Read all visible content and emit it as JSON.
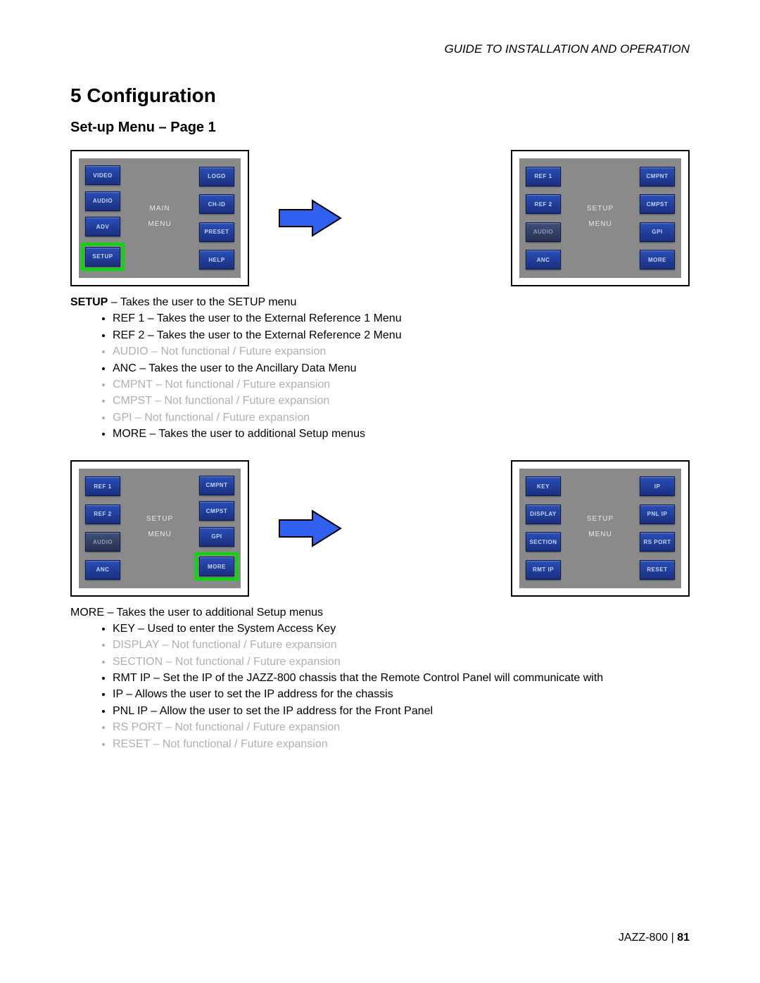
{
  "header": "GUIDE TO INSTALLATION AND OPERATION",
  "chapter": "5   Configuration",
  "section": "Set-up Menu – Page 1",
  "panel1": {
    "center1": "MAIN",
    "center2": "MENU",
    "left": [
      "VIDEO",
      "AUDIO",
      "ADV",
      "SETUP"
    ],
    "right": [
      "LOGO",
      "CH-ID",
      "PRESET",
      "HELP"
    ]
  },
  "panel2": {
    "center1": "SETUP",
    "center2": "MENU",
    "left": [
      "REF 1",
      "REF 2",
      "AUDIO",
      "ANC"
    ],
    "right": [
      "CMPNT",
      "CMPST",
      "GPI",
      "MORE"
    ]
  },
  "panel3": {
    "center1": "SETUP",
    "center2": "MENU",
    "left": [
      "REF 1",
      "REF 2",
      "AUDIO",
      "ANC"
    ],
    "right": [
      "CMPNT",
      "CMPST",
      "GPI",
      "MORE"
    ]
  },
  "panel4": {
    "center1": "SETUP",
    "center2": "MENU",
    "left": [
      "KEY",
      "DISPLAY",
      "SECTION",
      "RMT IP"
    ],
    "right": [
      "IP",
      "PNL IP",
      "RS PORT",
      "RESET"
    ]
  },
  "desc1": {
    "intro_bold": "SETUP",
    "intro_rest": " – Takes the user to the SETUP menu",
    "items": [
      {
        "t": "REF 1 – Takes the user to the External Reference 1 Menu",
        "dim": false
      },
      {
        "t": "REF 2 – Takes the user to the External Reference 2 Menu",
        "dim": false
      },
      {
        "t": "AUDIO – Not functional / Future expansion",
        "dim": true
      },
      {
        "t": "ANC – Takes the user to the Ancillary Data Menu",
        "dim": false
      },
      {
        "t": "CMPNT – Not functional / Future expansion",
        "dim": true
      },
      {
        "t": "CMPST – Not functional / Future expansion",
        "dim": true
      },
      {
        "t": "GPI – Not functional / Future expansion",
        "dim": true
      },
      {
        "t": "MORE – Takes the user to additional Setup menus",
        "dim": false
      }
    ]
  },
  "desc2": {
    "intro": "MORE – Takes the user to additional Setup menus",
    "items": [
      {
        "t": "KEY – Used to enter the System Access Key",
        "dim": false
      },
      {
        "t": "DISPLAY – Not functional / Future expansion",
        "dim": true
      },
      {
        "t": "SECTION – Not functional / Future expansion",
        "dim": true
      },
      {
        "t": "RMT IP – Set the IP of the JAZZ-800 chassis that the Remote Control Panel will communicate with",
        "dim": false
      },
      {
        "t": "IP – Allows the user to set the IP address for the chassis",
        "dim": false
      },
      {
        "t": "PNL IP – Allow the user to set the IP address for the Front Panel",
        "dim": false
      },
      {
        "t": "RS PORT – Not functional / Future expansion",
        "dim": true
      },
      {
        "t": "RESET – Not functional / Future expansion",
        "dim": true
      }
    ]
  },
  "footer_left": "JAZZ-800  |  ",
  "footer_page": "81",
  "colors": {
    "btn_grad_top": "#2a4fb8",
    "btn_grad_bot": "#1a2f80",
    "panel_bg": "#8a8a8a",
    "highlight": "#00e000",
    "arrow_fill": "#3060f0",
    "dim_text": "#b0b0b0"
  }
}
